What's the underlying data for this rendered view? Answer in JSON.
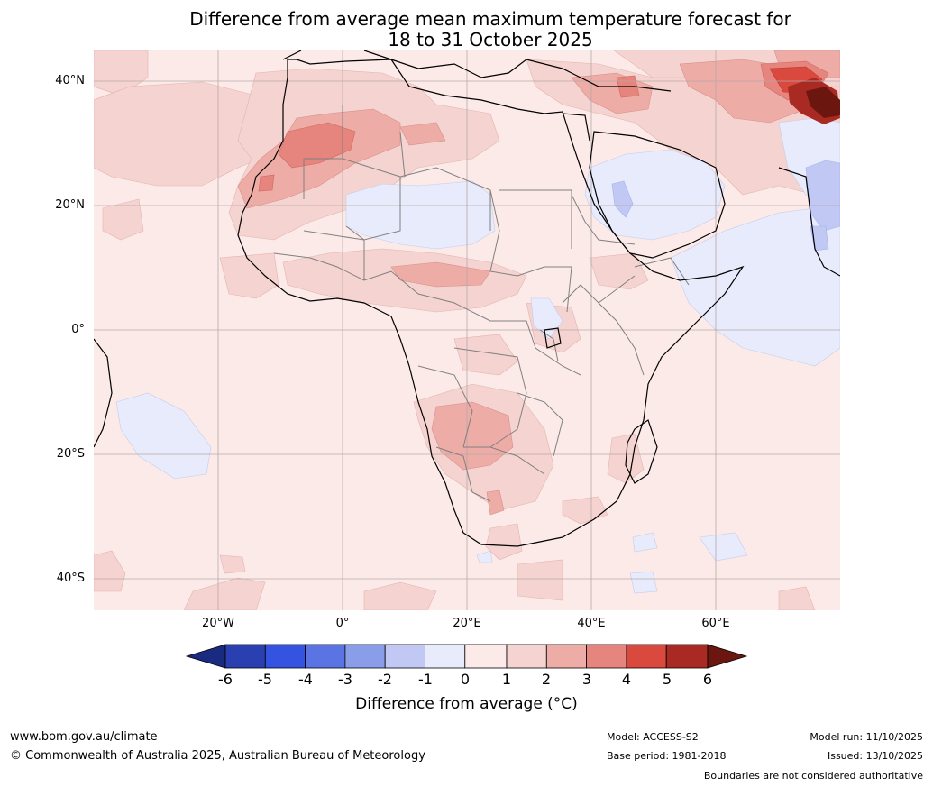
{
  "title": {
    "line1": "Difference from average mean maximum temperature forecast for",
    "line2": "18 to 31 October 2025"
  },
  "map": {
    "region": "Africa",
    "lat_labels": [
      "40°N",
      "20°N",
      "0°",
      "20°S",
      "40°S"
    ],
    "lon_labels": [
      "20°W",
      "0°",
      "20°E",
      "40°E",
      "60°E"
    ],
    "colors": {
      "ocean_base": "#fbeae8",
      "neutral": "#fbeae8",
      "warm_1_2": "#f5d3d0",
      "warm_2_3": "#eeaca7",
      "warm_3_4": "#e6857d",
      "warm_4_5": "#d9493e",
      "warm_5_6": "#a92a22",
      "warm_over_6": "#6b1710",
      "cool_0_1": "#e7ebfb",
      "cool_1_2": "#c0c8f3",
      "coast": "#000000",
      "border": "#808080",
      "grid": "#b8a8a8"
    }
  },
  "colorbar": {
    "ticks": [
      "-6",
      "-5",
      "-4",
      "-3",
      "-2",
      "-1",
      "0",
      "1",
      "2",
      "3",
      "4",
      "5",
      "6"
    ],
    "label": "Difference from average (°C)",
    "colors": [
      "#1a2a80",
      "#2a3fb0",
      "#3353e0",
      "#5b74e3",
      "#8a9de9",
      "#c0c8f3",
      "#e7ebfb",
      "#fbeae8",
      "#f5d3d0",
      "#eeaca7",
      "#e6857d",
      "#d9493e",
      "#a92a22",
      "#6b1710"
    ]
  },
  "footer": {
    "website": "www.bom.gov.au/climate",
    "copyright": "© Commonwealth of Australia 2025, Australian Bureau of Meteorology",
    "model": "Model: ACCESS-S2",
    "base_period": "Base period: 1981-2018",
    "model_run": "Model run: 11/10/2025",
    "issued": "Issued: 13/10/2025",
    "disclaimer": "Boundaries are not considered authoritative"
  }
}
